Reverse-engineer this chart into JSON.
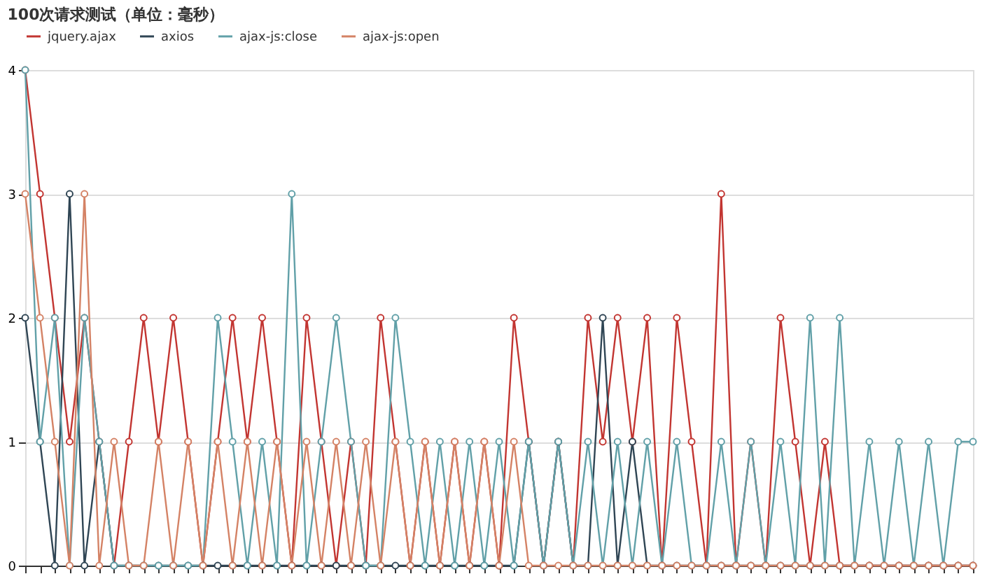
{
  "chart_data": {
    "type": "line",
    "title": "100次请求测试（单位：毫秒）",
    "categories": [
      null,
      null,
      null,
      null,
      null,
      null,
      null,
      null,
      null,
      null,
      null,
      null,
      null,
      null,
      null,
      null,
      null,
      null,
      null,
      null,
      null,
      null,
      null,
      null,
      null,
      null,
      null,
      null,
      null,
      null,
      null,
      null,
      null,
      null,
      null,
      null,
      null,
      null,
      null,
      null,
      null,
      null,
      null,
      null,
      null,
      null,
      null,
      null,
      null,
      null,
      null,
      null,
      null,
      null,
      null,
      null,
      null,
      null,
      null,
      null,
      null,
      null,
      null,
      null,
      null
    ],
    "series": [
      {
        "name": "jquery.ajax",
        "color": "#c23531",
        "values": [
          4,
          3,
          2,
          1,
          2,
          1,
          0,
          1,
          2,
          1,
          2,
          1,
          0,
          1,
          2,
          1,
          2,
          1,
          0,
          2,
          1,
          0,
          1,
          0,
          2,
          1,
          0,
          1,
          0,
          1,
          0,
          1,
          0,
          2,
          1,
          0,
          1,
          0,
          2,
          1,
          2,
          1,
          2,
          0,
          2,
          1,
          0,
          3,
          0,
          1,
          0,
          2,
          1,
          0,
          1,
          0,
          0,
          0,
          0,
          0,
          0,
          0,
          0,
          0,
          0
        ]
      },
      {
        "name": "axios",
        "color": "#2f4554",
        "values": [
          2,
          1,
          0,
          3,
          0,
          1,
          0,
          0,
          0,
          0,
          0,
          0,
          0,
          0,
          0,
          0,
          0,
          0,
          0,
          0,
          0,
          0,
          0,
          0,
          0,
          0,
          0,
          0,
          0,
          0,
          0,
          0,
          0,
          0,
          1,
          0,
          1,
          0,
          0,
          2,
          0,
          1,
          0,
          0,
          0,
          0,
          0,
          0,
          0,
          0,
          0,
          0,
          0,
          0,
          0,
          0,
          0,
          0,
          0,
          0,
          0,
          0,
          0,
          0,
          0
        ]
      },
      {
        "name": "ajax-js:close",
        "color": "#61a0a8",
        "values": [
          4,
          1,
          2,
          0,
          2,
          1,
          0,
          0,
          0,
          0,
          0,
          0,
          0,
          2,
          1,
          0,
          1,
          0,
          3,
          0,
          1,
          2,
          1,
          0,
          0,
          2,
          1,
          0,
          1,
          0,
          1,
          0,
          1,
          0,
          1,
          0,
          1,
          0,
          1,
          0,
          1,
          0,
          1,
          0,
          1,
          0,
          0,
          1,
          0,
          1,
          0,
          1,
          0,
          2,
          0,
          2,
          0,
          1,
          0,
          1,
          0,
          1,
          0,
          1,
          1
        ]
      },
      {
        "name": "ajax-js:open",
        "color": "#d48265",
        "values": [
          3,
          2,
          1,
          0,
          3,
          0,
          1,
          0,
          0,
          1,
          0,
          1,
          0,
          1,
          0,
          1,
          0,
          1,
          0,
          1,
          0,
          1,
          0,
          1,
          0,
          1,
          0,
          1,
          0,
          1,
          0,
          1,
          0,
          1,
          0,
          0,
          0,
          0,
          0,
          0,
          0,
          0,
          0,
          0,
          0,
          0,
          0,
          0,
          0,
          0,
          0,
          0,
          0,
          0,
          0,
          0,
          0,
          0,
          0,
          0,
          0,
          0,
          0,
          0,
          0
        ]
      }
    ],
    "ylim": [
      0,
      4
    ],
    "yticks": [
      0,
      1,
      2,
      3,
      4
    ],
    "grid": "y",
    "legend": "top",
    "marker": "circle",
    "tick_labels": "y"
  }
}
